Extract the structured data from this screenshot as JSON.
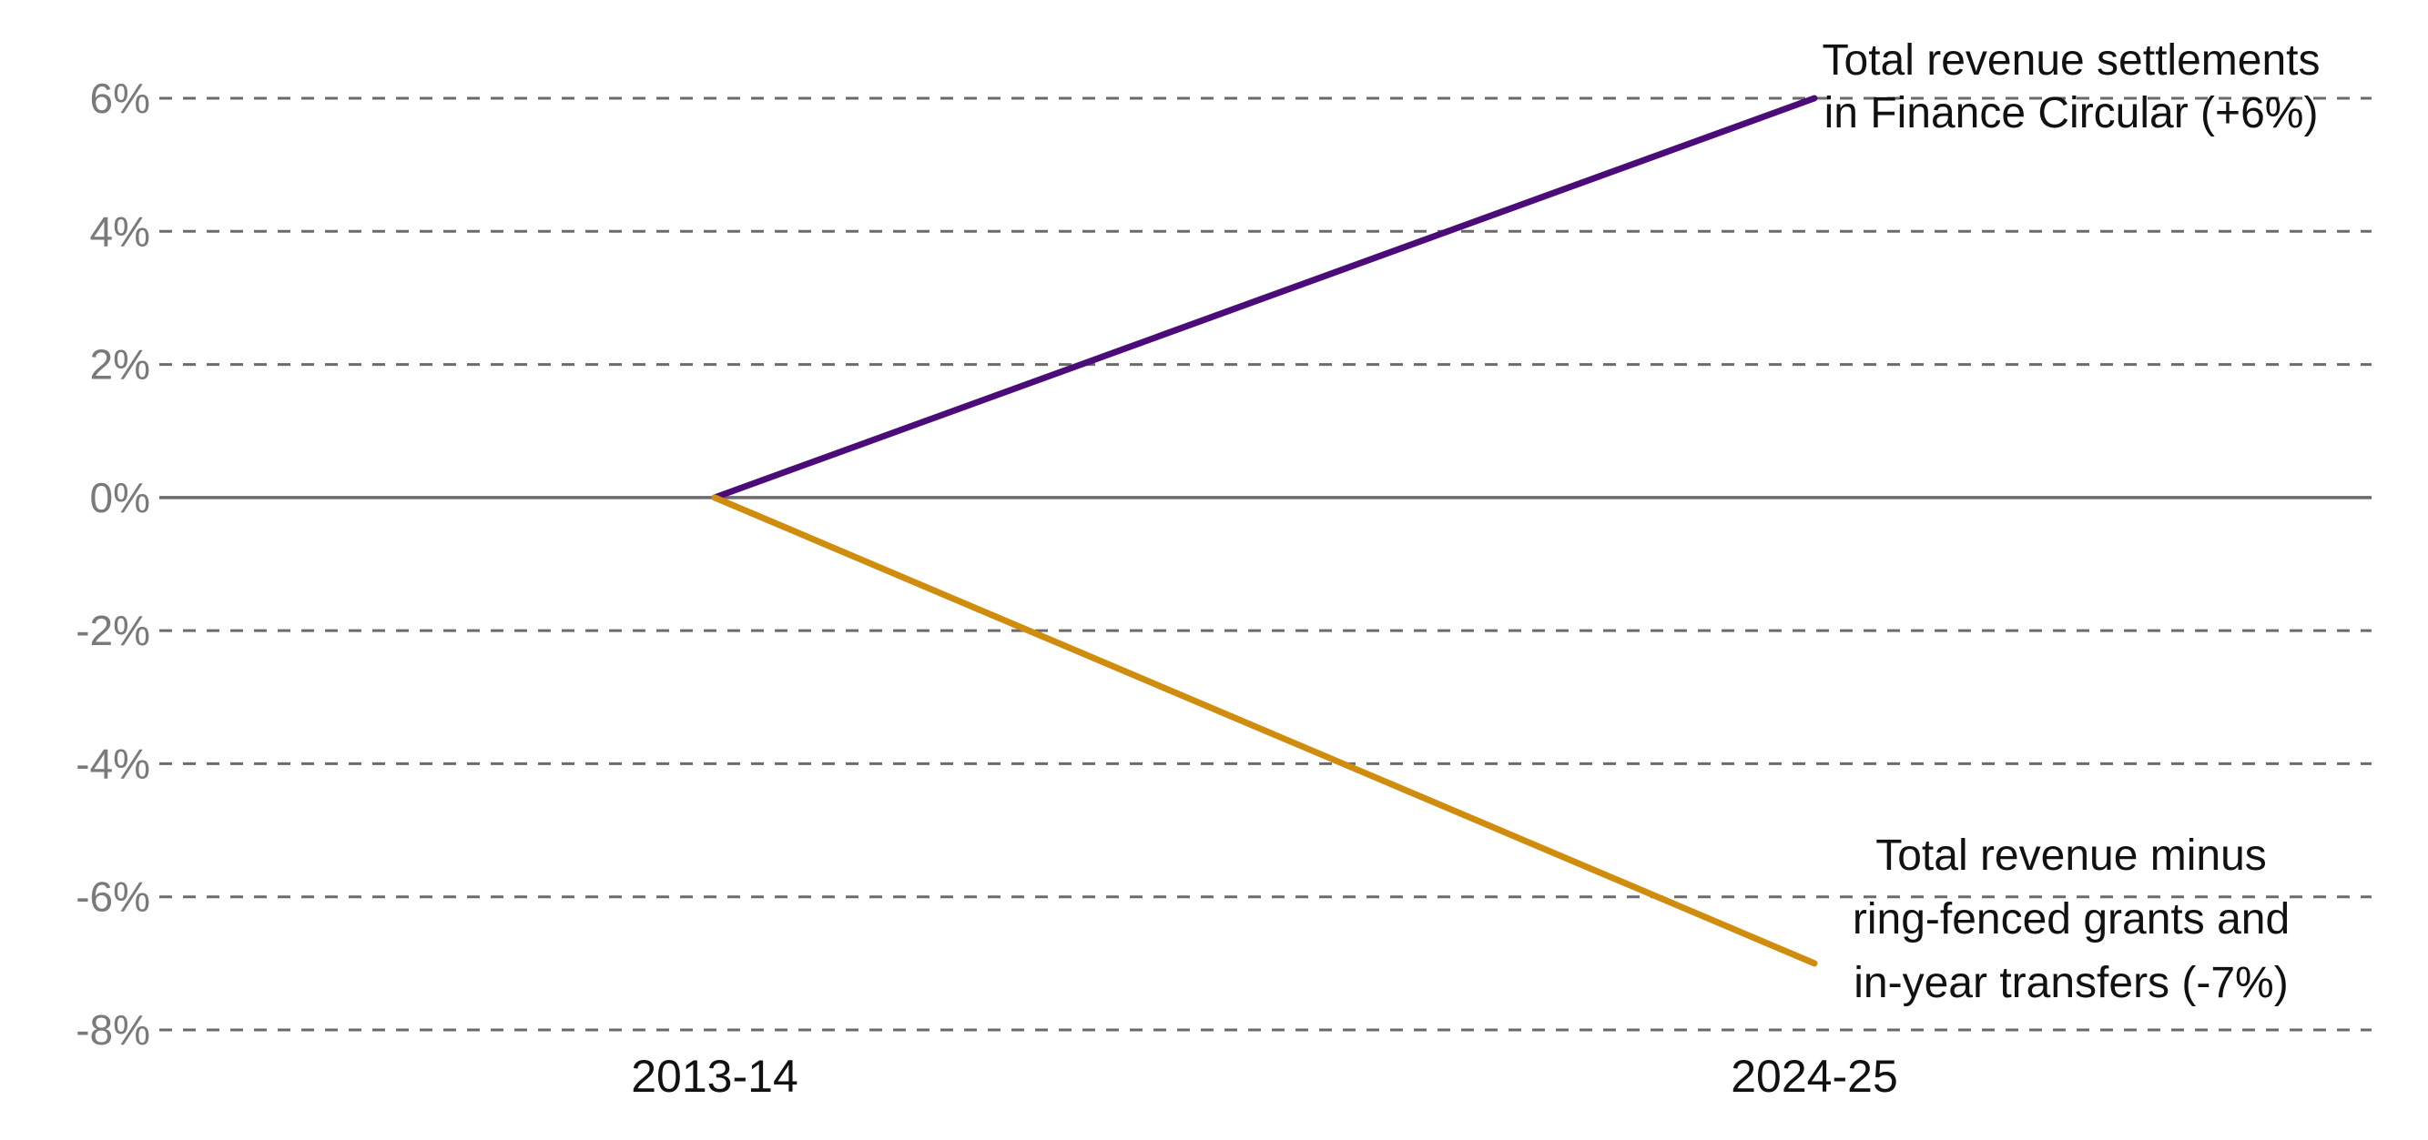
{
  "chart_data": {
    "type": "line",
    "categories": [
      "2013-14",
      "2024-25"
    ],
    "ylim": [
      -8,
      6
    ],
    "yticks": [
      6,
      4,
      2,
      0,
      -2,
      -4,
      -6,
      -8
    ],
    "ytick_labels": [
      "6%",
      "4%",
      "2%",
      "0%",
      "-2%",
      "-4%",
      "-6%",
      "-8%"
    ],
    "grid": "dashed horizontal",
    "title": "",
    "xlabel": "",
    "ylabel": "",
    "series": [
      {
        "name": "Total revenue settlements in Finance Circular (+6%)",
        "label_lines": [
          "Total revenue settlements",
          "in Finance Circular (+6%)"
        ],
        "color": "#4b0c7a",
        "values": [
          0,
          6
        ]
      },
      {
        "name": "Total revenue minus ring-fenced grants and in-year transfers (-7%)",
        "label_lines": [
          "Total revenue minus",
          "ring-fenced grants and",
          "in-year transfers (-7%)"
        ],
        "color": "#d08c0c",
        "values": [
          0,
          -7
        ]
      }
    ]
  }
}
